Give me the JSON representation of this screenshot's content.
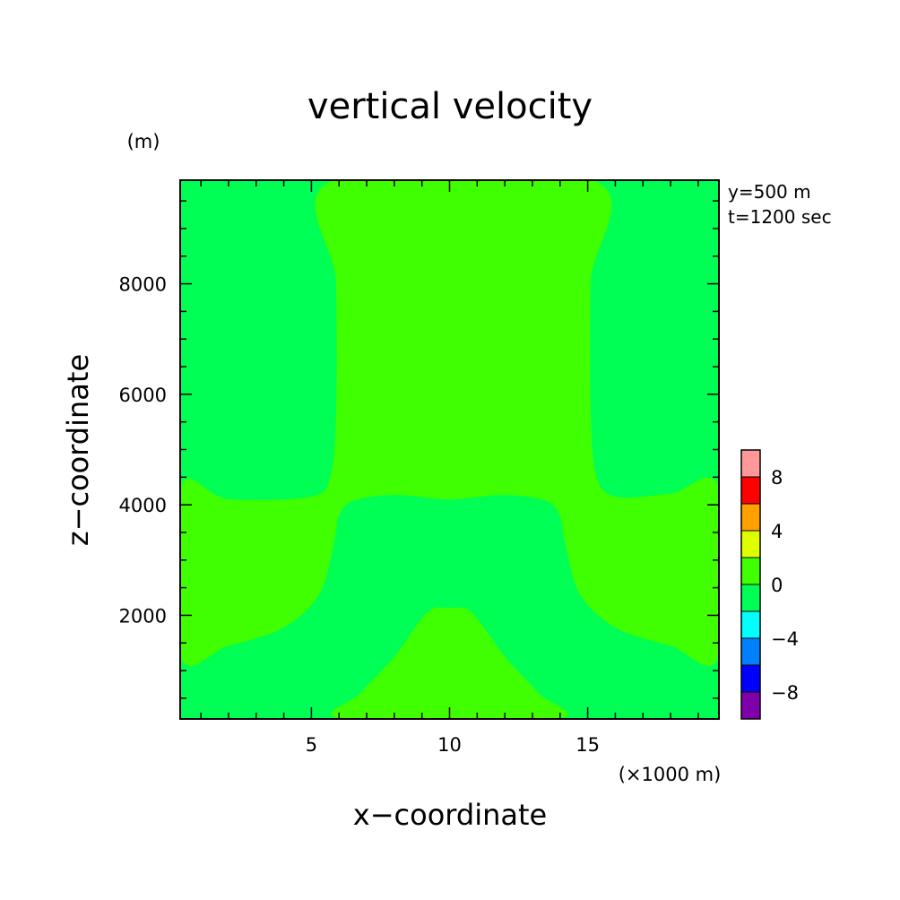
{
  "chart_data": {
    "type": "heatmap",
    "title": "vertical velocity",
    "xlabel": "x−coordinate",
    "ylabel": "z−coordinate",
    "x_unit": "(×1000 m)",
    "y_unit": "(m)",
    "xlim": [
      0.25,
      19.75
    ],
    "ylim": [
      125,
      9875
    ],
    "x_ticks": [
      5,
      10,
      15
    ],
    "x_tick_labels": [
      "5",
      "10",
      "15"
    ],
    "y_ticks": [
      2000,
      4000,
      6000,
      8000
    ],
    "y_tick_labels": [
      "2000",
      "4000",
      "6000",
      "8000"
    ],
    "info_lines": [
      "y=500 m",
      "t=1200 sec"
    ],
    "colorbar": {
      "levels": [
        -10,
        -8,
        -6,
        -4,
        -2,
        0,
        2,
        4,
        6,
        8,
        10
      ],
      "colors": [
        "#7f00aa",
        "#0000ff",
        "#0080ff",
        "#00ffff",
        "#00ff55",
        "#40ff00",
        "#ddff00",
        "#ffa000",
        "#ff0000",
        "#ff9999"
      ],
      "tick_values": [
        -8,
        -4,
        0,
        4,
        8
      ],
      "tick_labels": [
        "−8",
        "−4",
        "0",
        "4",
        "8"
      ]
    },
    "regions": [
      {
        "level": "-2 to 0",
        "color": "#00ff55",
        "boundary": [
          [
            0.25,
            125
          ],
          [
            19.75,
            125
          ],
          [
            19.75,
            9875
          ],
          [
            0.25,
            9875
          ]
        ]
      },
      {
        "level": "0 to 2",
        "color": "#40ff00",
        "boundary": [
          [
            0.25,
            1270
          ],
          [
            2,
            1450
          ],
          [
            4,
            1780
          ],
          [
            5.3,
            2400
          ],
          [
            5.85,
            3400
          ],
          [
            6,
            3800
          ],
          [
            6.5,
            4070
          ],
          [
            8,
            4180
          ],
          [
            10,
            4100
          ],
          [
            12,
            4180
          ],
          [
            13.5,
            4070
          ],
          [
            14,
            3800
          ],
          [
            14.15,
            3400
          ],
          [
            14.7,
            2400
          ],
          [
            16,
            1780
          ],
          [
            18,
            1450
          ],
          [
            19.75,
            1270
          ],
          [
            19.75,
            4300
          ],
          [
            18,
            4200
          ],
          [
            16,
            4150
          ],
          [
            15.3,
            4550
          ],
          [
            15.1,
            5800
          ],
          [
            15.1,
            8000
          ],
          [
            15.2,
            9875
          ],
          [
            5.8,
            9875
          ],
          [
            5.9,
            8000
          ],
          [
            5.9,
            5800
          ],
          [
            5.7,
            4550
          ],
          [
            5,
            4150
          ],
          [
            2,
            4100
          ],
          [
            0.25,
            4300
          ]
        ]
      },
      {
        "level": "0 to 2",
        "color": "#40ff00",
        "boundary": [
          [
            6.15,
            125
          ],
          [
            6.8,
            600
          ],
          [
            8,
            1250
          ],
          [
            9.2,
            2050
          ],
          [
            10,
            2130
          ],
          [
            10.8,
            2050
          ],
          [
            12,
            1250
          ],
          [
            13.2,
            600
          ],
          [
            13.85,
            125
          ]
        ]
      }
    ]
  }
}
